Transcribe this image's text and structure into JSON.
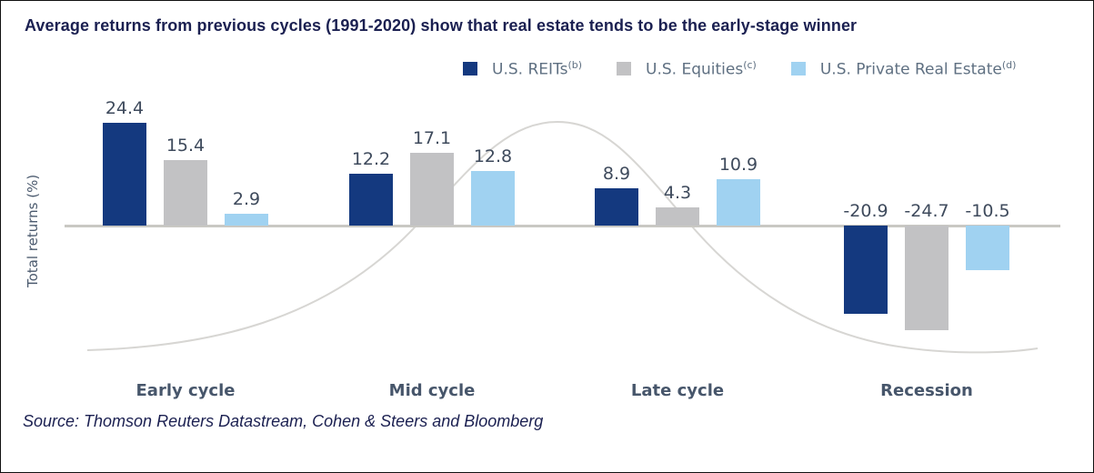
{
  "title": "Average returns from previous cycles (1991-2020) show that real estate tends to be the early-stage winner",
  "source": "Source: Thomson Reuters Datastream, Cohen & Steers and Bloomberg",
  "colors": {
    "title_text": "#1b2051",
    "value_label_text": "#3e4a5c",
    "category_label_text": "#47566b",
    "legend_text": "#5f7082",
    "zero_axis": "#c9c8c3",
    "cycle_curve": "#d7d6d3"
  },
  "chart_data": {
    "type": "bar",
    "title": "Average returns from previous cycles (1991-2020) show that real estate tends to be the early-stage winner",
    "xlabel": "",
    "ylabel": "Total returns (%)",
    "ylim": [
      -30,
      30
    ],
    "grid": false,
    "legend_position": "top",
    "value_labels_shown": true,
    "categories": [
      "Early cycle",
      "Mid cycle",
      "Late cycle",
      "Recession"
    ],
    "series": [
      {
        "name": "U.S. REITs",
        "sup": "(b)",
        "color": "#14397f",
        "values": [
          24.4,
          12.2,
          8.9,
          -20.9
        ]
      },
      {
        "name": "U.S. Equities",
        "sup": "(c)",
        "color": "#c2c2c4",
        "values": [
          15.4,
          17.1,
          4.3,
          -24.7
        ]
      },
      {
        "name": "U.S. Private Real Estate",
        "sup": "(d)",
        "color": "#a0d2f1",
        "values": [
          2.9,
          12.8,
          10.9,
          -10.5
        ]
      }
    ],
    "decorations": {
      "cycle_curve": {
        "description": "stylized economic-cycle wave behind bars, rising through mid cycle and falling into recession",
        "color": "#d7d6d3"
      }
    }
  }
}
